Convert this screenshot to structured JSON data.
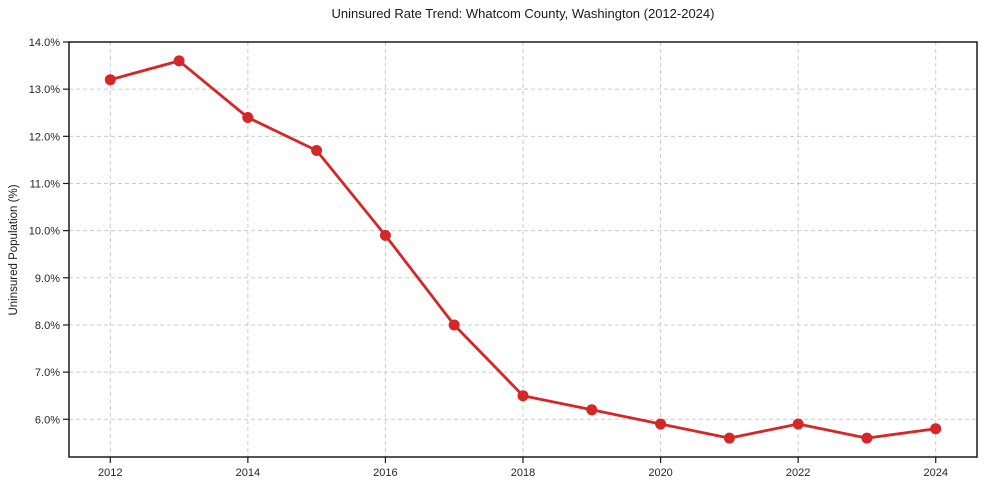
{
  "figure": {
    "background_color": "#ffffff"
  },
  "chart_data": {
    "type": "line",
    "title": "Uninsured Rate Trend: Whatcom County, Washington (2012-2024)",
    "xlabel": "",
    "ylabel": "Uninsured Population (%)",
    "x": [
      2012,
      2013,
      2014,
      2015,
      2016,
      2017,
      2018,
      2019,
      2020,
      2021,
      2022,
      2023,
      2024
    ],
    "values": [
      13.2,
      13.6,
      12.4,
      11.7,
      9.9,
      8.0,
      6.5,
      6.2,
      5.9,
      5.6,
      5.9,
      5.6,
      5.8
    ],
    "xticks": [
      2012,
      2014,
      2016,
      2018,
      2020,
      2022,
      2024
    ],
    "xtick_labels": [
      "2012",
      "2014",
      "2016",
      "2018",
      "2020",
      "2022",
      "2024"
    ],
    "yticks": [
      6,
      7,
      8,
      9,
      10,
      11,
      12,
      13,
      14
    ],
    "ytick_labels": [
      "6.0%",
      "7.0%",
      "8.0%",
      "9.0%",
      "10.0%",
      "11.0%",
      "12.0%",
      "13.0%",
      "14.0%"
    ],
    "xlim": [
      2011.4,
      2024.6
    ],
    "ylim": [
      5.2,
      14.0
    ],
    "grid": true,
    "grid_style": "dashed",
    "legend": false,
    "line_color": "#d62728",
    "marker": "circle",
    "marker_radius": 5.5,
    "line_width": 2.8,
    "grid_color": "#cbcbcb",
    "axis_color": "#1a1a1a",
    "text_color": "#262626"
  }
}
